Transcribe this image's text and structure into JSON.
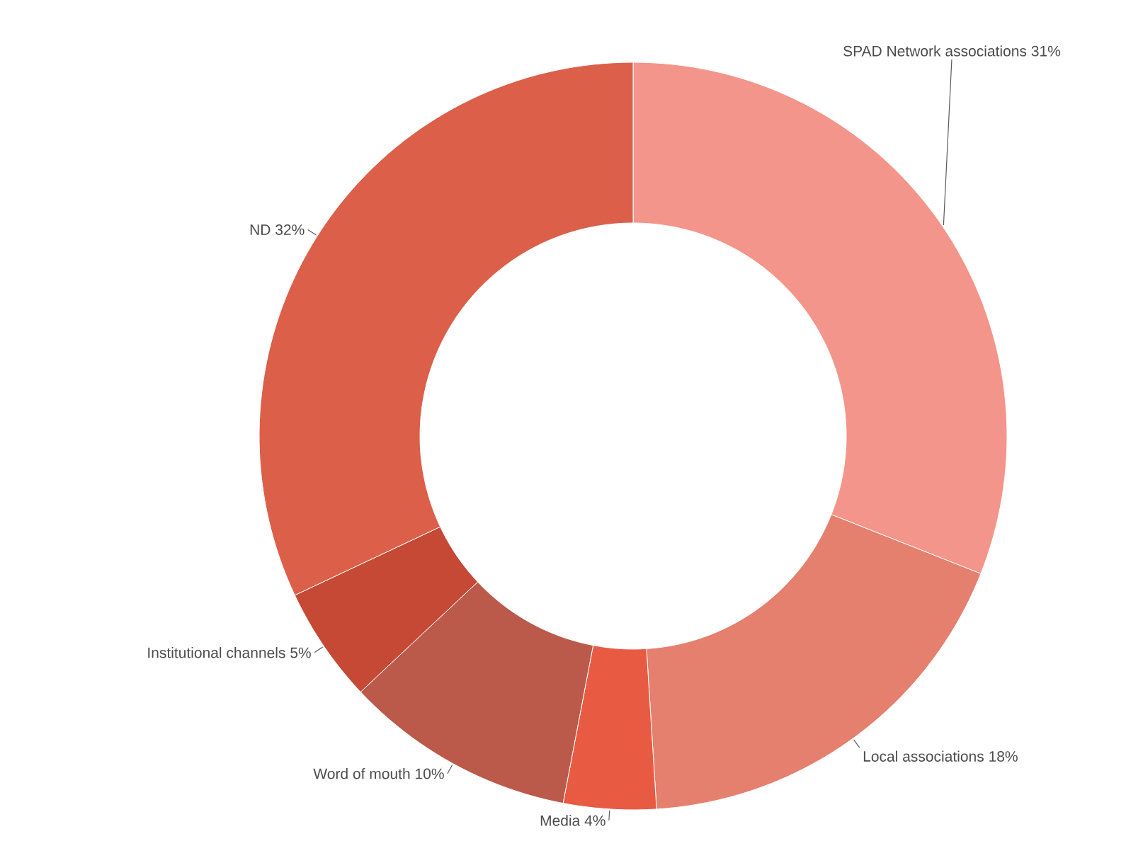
{
  "chart_data": {
    "type": "donut",
    "categories": [
      "SPAD Network associations",
      "Local associations",
      "Media",
      "Word of mouth",
      "Institutional channels",
      "ND"
    ],
    "values": [
      31,
      18,
      4,
      10,
      5,
      32
    ],
    "value_labels": [
      "31%",
      "18%",
      "4%",
      "10%",
      "5%",
      "32%"
    ],
    "colors": [
      "#f3958a",
      "#e57f6e",
      "#e95a43",
      "#bb5a4a",
      "#c54935",
      "#dc5f4a"
    ]
  }
}
